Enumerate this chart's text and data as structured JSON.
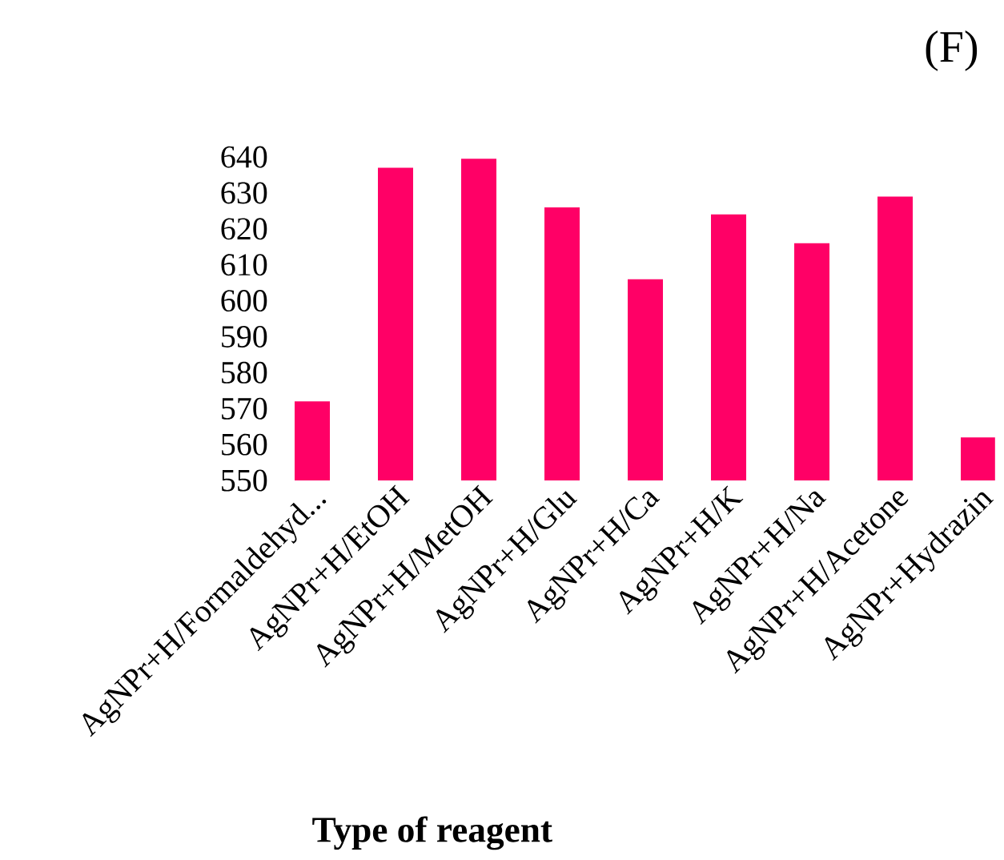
{
  "chart_data": {
    "type": "bar",
    "title": "(F)",
    "xlabel": "Type of reagent",
    "categories": [
      "AgNPr+H/Formaldehyd...",
      "AgNPr+H/EtOH",
      "AgNPr+H/MetOH",
      "AgNPr+H/Glu",
      "AgNPr+H/Ca",
      "AgNPr+H/K",
      "AgNPr+H/Na",
      "AgNPr+H/Acetone",
      "AgNPr+Hydrazin"
    ],
    "values": [
      572,
      637,
      639.5,
      626,
      606,
      624,
      616,
      629,
      562
    ],
    "color": "#ff0066",
    "ylim": [
      550,
      640
    ],
    "yticks": [
      550,
      560,
      570,
      580,
      590,
      600,
      610,
      620,
      630,
      640
    ],
    "grid": false
  }
}
